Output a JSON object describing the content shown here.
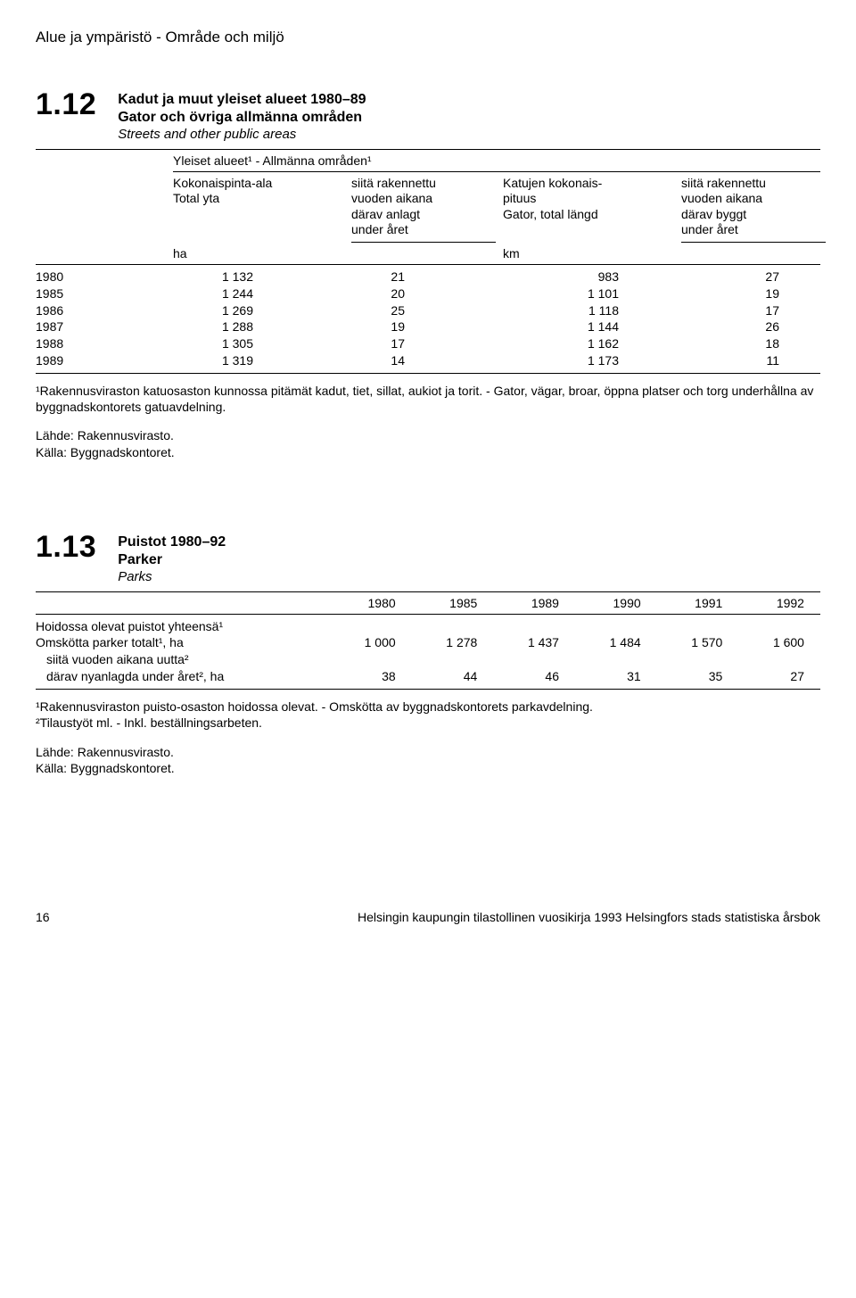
{
  "page_header": "Alue ja ympäristö - Område och miljö",
  "s112": {
    "number": "1.12",
    "title_fi": "Kadut ja muut yleiset alueet 1980–89",
    "title_sv": "Gator och övriga allmänna områden",
    "title_en": "Streets and other public areas",
    "subheading": "Yleiset alueet¹ - Allmänna områden¹",
    "col1": {
      "l1": "Kokonaispinta-ala",
      "l2": "Total yta"
    },
    "col2": {
      "l1": "siitä rakennettu",
      "l2": "vuoden aikana",
      "l3": "därav anlagt",
      "l4": "under året"
    },
    "col3": {
      "l1": "Katujen kokonais-",
      "l2": "pituus",
      "l3": "Gator, total längd"
    },
    "col4": {
      "l1": "siitä rakennettu",
      "l2": "vuoden aikana",
      "l3": "därav byggt",
      "l4": "under året"
    },
    "unit_ha": "ha",
    "unit_km": "km",
    "rows": [
      {
        "year": "1980",
        "area": "1 132",
        "built": "21",
        "length": "983",
        "built_len": "27"
      },
      {
        "year": "1985",
        "area": "1 244",
        "built": "20",
        "length": "1 101",
        "built_len": "19"
      },
      {
        "year": "1986",
        "area": "1 269",
        "built": "25",
        "length": "1 118",
        "built_len": "17"
      },
      {
        "year": "1987",
        "area": "1 288",
        "built": "19",
        "length": "1 144",
        "built_len": "26"
      },
      {
        "year": "1988",
        "area": "1 305",
        "built": "17",
        "length": "1 162",
        "built_len": "18"
      },
      {
        "year": "1989",
        "area": "1 319",
        "built": "14",
        "length": "1 173",
        "built_len": "11"
      }
    ],
    "footnote": "¹Rakennusviraston katuosaston kunnossa pitämät kadut, tiet, sillat, aukiot ja torit. - Gator, vägar, broar, öppna platser och torg underhållna av byggnadskontorets gatuavdelning.",
    "source1": "Lähde: Rakennusvirasto.",
    "source2": "Källa: Byggnadskontoret."
  },
  "s113": {
    "number": "1.13",
    "title_fi": "Puistot 1980–92",
    "title_sv": "Parker",
    "title_en": "Parks",
    "years": [
      "1980",
      "1985",
      "1989",
      "1990",
      "1991",
      "1992"
    ],
    "row_group_label": "Hoidossa olevat puistot yhteensä¹",
    "rows": [
      {
        "label": "Omskötta parker totalt¹, ha",
        "vals": [
          "1 000",
          "1 278",
          "1 437",
          "1 484",
          "1 570",
          "1 600"
        ]
      },
      {
        "label": "siitä vuoden aikana uutta²",
        "vals": [
          "",
          "",
          "",
          "",
          "",
          ""
        ]
      },
      {
        "label": "därav nyanlagda under året², ha",
        "vals": [
          "38",
          "44",
          "46",
          "31",
          "35",
          "27"
        ]
      }
    ],
    "footnote1": "¹Rakennusviraston puisto-osaston hoidossa olevat. - Omskötta av byggnadskontorets parkavdelning.",
    "footnote2": "²Tilaustyöt ml. - Inkl. beställningsarbeten.",
    "source1": "Lähde: Rakennusvirasto.",
    "source2": "Källa: Byggnadskontoret."
  },
  "footer": {
    "page_number": "16",
    "book_title": "Helsingin kaupungin tilastollinen vuosikirja 1993 Helsingfors stads statistiska årsbok"
  }
}
